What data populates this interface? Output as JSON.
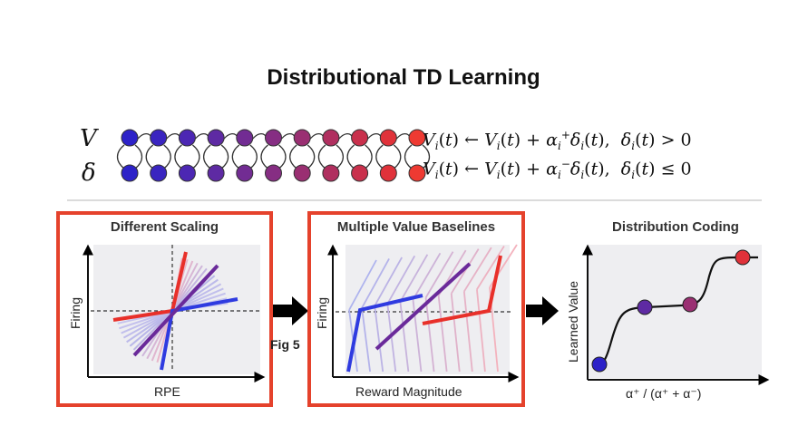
{
  "title": "Distributional TD Learning",
  "labels": {
    "v_symbol": "V",
    "delta_symbol": "δ"
  },
  "equations": {
    "positive": {
      "lhs": "V",
      "rhs_v": "V",
      "alpha_sup": "+",
      "cond": "δ",
      "rel": "> 0"
    },
    "negative": {
      "lhs": "V",
      "rhs_v": "V",
      "alpha_sup": "−",
      "cond": "δ",
      "rel": "≤ 0"
    }
  },
  "colors": {
    "neurons": [
      "#2d22c8",
      "#3a25c0",
      "#4c27b3",
      "#5e2aa3",
      "#722c93",
      "#862e83",
      "#9a2f72",
      "#b02f5f",
      "#c9304c",
      "#e0323a",
      "#ee3a32"
    ],
    "frame": "#e5422c",
    "red": "#e8302a",
    "blue": "#2f3be0",
    "purple": "#6a2a9a"
  },
  "panels": {
    "scaling": {
      "title": "Different Scaling",
      "xlabel": "RPE",
      "ylabel": "Firing"
    },
    "baselines": {
      "title": "Multiple Value Baselines",
      "xlabel": "Reward Magnitude",
      "ylabel": "Firing"
    },
    "coding": {
      "title": "Distribution Coding",
      "xlabel": "α⁺ / (α⁺ + α⁻)",
      "ylabel": "Learned Value"
    }
  },
  "overlay_text": "Fig 5"
}
